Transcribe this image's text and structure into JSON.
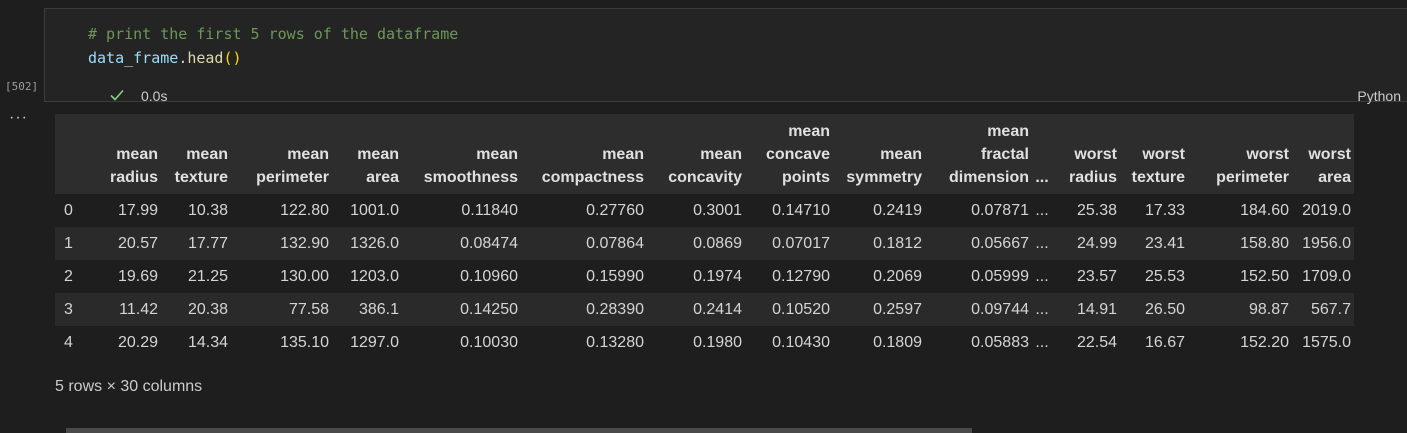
{
  "cell": {
    "code_comment": "# print the first 5 rows of the dataframe",
    "code_var": "data_frame",
    "code_dot": ".",
    "code_fn": "head",
    "code_parens": "()",
    "execution_count": "[502]",
    "status_icon": "check-icon",
    "duration": "0.0s",
    "language": "Python",
    "output_menu_icon": "more-icon"
  },
  "table": {
    "columns": [
      [
        "mean",
        "radius"
      ],
      [
        "mean",
        "texture"
      ],
      [
        "mean",
        "perimeter"
      ],
      [
        "mean",
        "area"
      ],
      [
        "mean",
        "smoothness"
      ],
      [
        "mean",
        "compactness"
      ],
      [
        "mean",
        "concavity"
      ],
      [
        "mean",
        "concave",
        "points"
      ],
      [
        "mean",
        "symmetry"
      ],
      [
        "mean",
        "fractal",
        "dimension"
      ],
      [
        "..."
      ],
      [
        "worst",
        "radius"
      ],
      [
        "worst",
        "texture"
      ],
      [
        "worst",
        "perimeter"
      ],
      [
        "worst",
        "area"
      ]
    ],
    "rows": [
      [
        "0",
        "17.99",
        "10.38",
        "122.80",
        "1001.0",
        "0.11840",
        "0.27760",
        "0.3001",
        "0.14710",
        "0.2419",
        "0.07871",
        "...",
        "25.38",
        "17.33",
        "184.60",
        "2019.0"
      ],
      [
        "1",
        "20.57",
        "17.77",
        "132.90",
        "1326.0",
        "0.08474",
        "0.07864",
        "0.0869",
        "0.07017",
        "0.1812",
        "0.05667",
        "...",
        "24.99",
        "23.41",
        "158.80",
        "1956.0"
      ],
      [
        "2",
        "19.69",
        "21.25",
        "130.00",
        "1203.0",
        "0.10960",
        "0.15990",
        "0.1974",
        "0.12790",
        "0.2069",
        "0.05999",
        "...",
        "23.57",
        "25.53",
        "152.50",
        "1709.0"
      ],
      [
        "3",
        "11.42",
        "20.38",
        "77.58",
        "386.1",
        "0.14250",
        "0.28390",
        "0.2414",
        "0.10520",
        "0.2597",
        "0.09744",
        "...",
        "14.91",
        "26.50",
        "98.87",
        "567.7"
      ],
      [
        "4",
        "20.29",
        "14.34",
        "135.10",
        "1297.0",
        "0.10030",
        "0.13280",
        "0.1980",
        "0.10430",
        "0.1809",
        "0.05883",
        "...",
        "22.54",
        "16.67",
        "152.20",
        "1575.0"
      ]
    ],
    "summary": "5 rows × 30 columns"
  },
  "colors": {
    "comment": "#6a9955",
    "variable": "#9cdcfe",
    "function": "#dcdcaa",
    "success": "#89d185"
  }
}
